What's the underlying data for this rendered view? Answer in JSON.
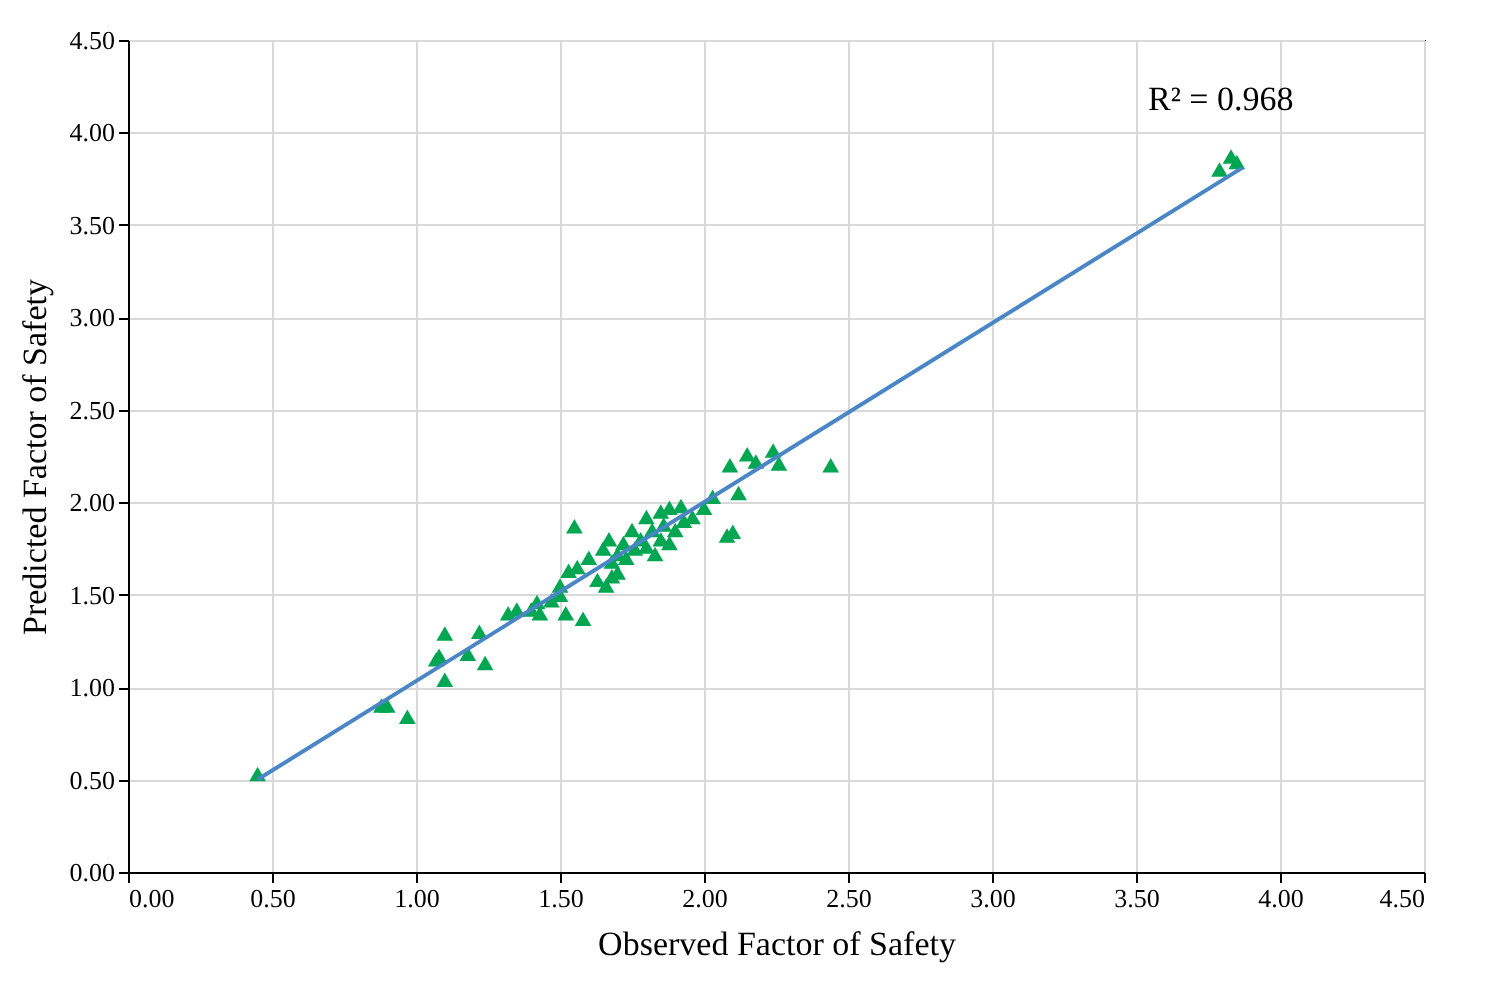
{
  "chart_data": {
    "type": "scatter",
    "xlabel": "Observed Factor of Safety",
    "ylabel": "Predicted Factor of Safety",
    "xlim": [
      0,
      4.5
    ],
    "ylim": [
      0,
      4.5
    ],
    "xticks": [
      {
        "value": 0,
        "label": "0.00"
      },
      {
        "value": 0.5,
        "label": "0.50"
      },
      {
        "value": 1,
        "label": "1.00"
      },
      {
        "value": 1.5,
        "label": "1.50"
      },
      {
        "value": 2,
        "label": "2.00"
      },
      {
        "value": 2.5,
        "label": "2.50"
      },
      {
        "value": 3,
        "label": "3.00"
      },
      {
        "value": 3.5,
        "label": "3.50"
      },
      {
        "value": 4,
        "label": "4.00"
      },
      {
        "value": 4.5,
        "label": "4.50"
      }
    ],
    "yticks": [
      {
        "value": 0,
        "label": "0.00"
      },
      {
        "value": 0.5,
        "label": "0.50"
      },
      {
        "value": 1,
        "label": "1.00"
      },
      {
        "value": 1.5,
        "label": "1.50"
      },
      {
        "value": 2,
        "label": "2.00"
      },
      {
        "value": 2.5,
        "label": "2.50"
      },
      {
        "value": 3,
        "label": "3.00"
      },
      {
        "value": 3.5,
        "label": "3.50"
      },
      {
        "value": 4,
        "label": "4.00"
      },
      {
        "value": 4.5,
        "label": "4.50"
      }
    ],
    "grid": true,
    "annotations": [
      "R² = 0.968"
    ],
    "series": [
      {
        "color": "#00a651",
        "marker": "triangle",
        "x": [
          0.45,
          0.88,
          0.9,
          0.97,
          1.07,
          1.08,
          1.1,
          1.1,
          1.18,
          1.22,
          1.24,
          1.32,
          1.35,
          1.4,
          1.42,
          1.43,
          1.47,
          1.5,
          1.5,
          1.52,
          1.53,
          1.55,
          1.56,
          1.58,
          1.6,
          1.63,
          1.65,
          1.66,
          1.67,
          1.68,
          1.68,
          1.7,
          1.7,
          1.72,
          1.73,
          1.75,
          1.76,
          1.78,
          1.8,
          1.8,
          1.82,
          1.83,
          1.85,
          1.85,
          1.86,
          1.88,
          1.88,
          1.9,
          1.92,
          1.93,
          1.96,
          2.0,
          2.03,
          2.08,
          2.09,
          2.1,
          2.12,
          2.15,
          2.18,
          2.24,
          2.26,
          2.44,
          3.79,
          3.83,
          3.85
        ],
        "values": [
          0.53,
          0.9,
          0.9,
          0.84,
          1.15,
          1.17,
          1.29,
          1.04,
          1.18,
          1.3,
          1.13,
          1.4,
          1.42,
          1.42,
          1.46,
          1.4,
          1.47,
          1.5,
          1.55,
          1.4,
          1.63,
          1.87,
          1.65,
          1.37,
          1.7,
          1.58,
          1.75,
          1.55,
          1.8,
          1.68,
          1.6,
          1.72,
          1.62,
          1.78,
          1.7,
          1.85,
          1.75,
          1.8,
          1.92,
          1.76,
          1.85,
          1.72,
          1.8,
          1.95,
          1.88,
          1.78,
          1.97,
          1.85,
          1.98,
          1.9,
          1.92,
          1.97,
          2.03,
          1.82,
          2.2,
          1.84,
          2.05,
          2.26,
          2.22,
          2.28,
          2.21,
          2.2,
          3.8,
          3.87,
          3.84
        ]
      },
      {
        "type": "line",
        "color": "#4a86c5",
        "line_style": "solid",
        "x": [
          0.45,
          3.87
        ],
        "values": [
          0.5,
          3.81
        ]
      }
    ]
  }
}
